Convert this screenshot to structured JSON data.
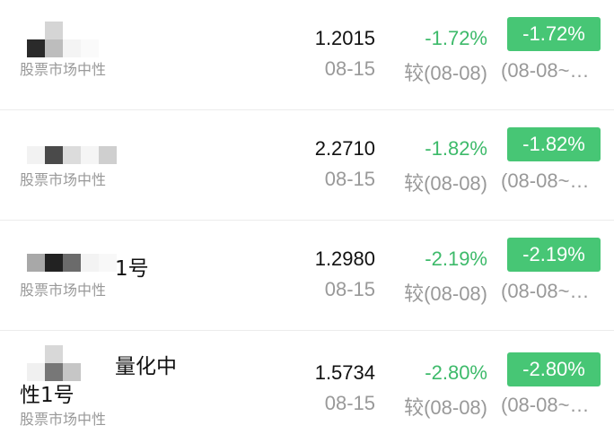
{
  "funds": [
    {
      "name": "",
      "category": "股票市场中性",
      "value": "1.2015",
      "date": "08-15",
      "change": "-1.72%",
      "compare": "较(08-08)",
      "period_change": "-1.72%",
      "period": "(08-08~…"
    },
    {
      "name": "",
      "category": "股票市场中性",
      "value": "2.2710",
      "date": "08-15",
      "change": "-1.82%",
      "compare": "较(08-08)",
      "period_change": "-1.82%",
      "period": "(08-08~…"
    },
    {
      "name": "1号",
      "category": "股票市场中性",
      "value": "1.2980",
      "date": "08-15",
      "change": "-2.19%",
      "compare": "较(08-08)",
      "period_change": "-2.19%",
      "period": "(08-08~…"
    },
    {
      "name": "量化中",
      "name_line2": "性1号",
      "category": "股票市场中性",
      "value": "1.5734",
      "date": "08-15",
      "change": "-2.80%",
      "compare": "较(08-08)",
      "period_change": "-2.80%",
      "period": "(08-08~…"
    }
  ],
  "colors": {
    "positive_green": "#3dba6a",
    "badge_green": "#47c675"
  }
}
